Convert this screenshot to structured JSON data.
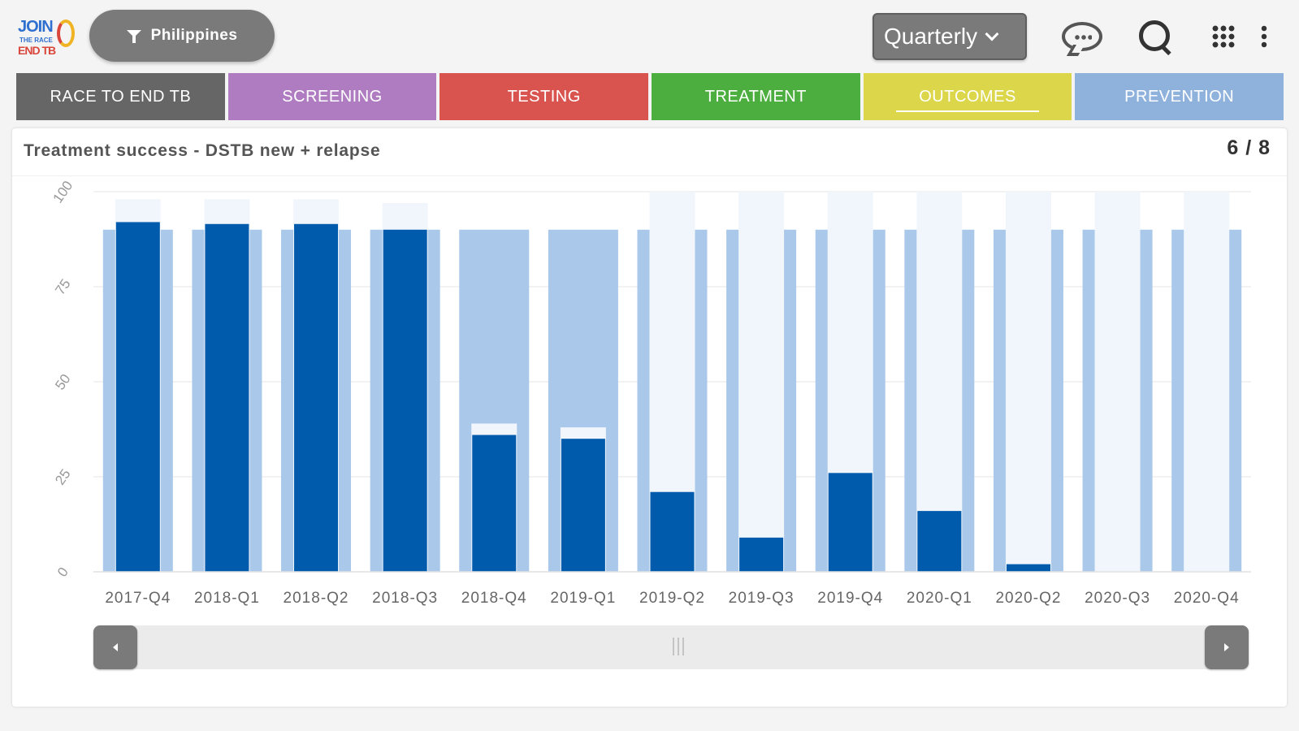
{
  "header": {
    "logo": {
      "line1": "JOIN",
      "line2": "THE RACE",
      "line3": "END TB"
    },
    "country_label": "Philippines",
    "period_value": "Quarterly"
  },
  "icons": {
    "filter": "filter-icon",
    "chat": "chat-icon",
    "search": "search-icon",
    "apps": "grid-icon",
    "more": "kebab-icon"
  },
  "tabs": [
    {
      "label": "RACE TO END TB",
      "color": "#666666"
    },
    {
      "label": "SCREENING",
      "color": "#b07cc1"
    },
    {
      "label": "TESTING",
      "color": "#d9534f"
    },
    {
      "label": "TREATMENT",
      "color": "#4cae3f"
    },
    {
      "label": "OUTCOMES",
      "color": "#dcd64b",
      "active": true
    },
    {
      "label": "PREVENTION",
      "color": "#8fb2dc"
    }
  ],
  "card": {
    "title": "Treatment success - DSTB new + relapse",
    "pager": "6 / 8"
  },
  "chart_data": {
    "type": "bar",
    "categories": [
      "2017-Q4",
      "2018-Q1",
      "2018-Q2",
      "2018-Q3",
      "2018-Q4",
      "2019-Q1",
      "2019-Q2",
      "2019-Q3",
      "2019-Q4",
      "2020-Q1",
      "2020-Q2",
      "2020-Q3",
      "2020-Q4"
    ],
    "series": [
      {
        "values": [
          90,
          90,
          90,
          90,
          90,
          90,
          90,
          90,
          90,
          90,
          90,
          90,
          90
        ],
        "color": "#a9c8ea"
      },
      {
        "values": [
          98,
          98,
          98,
          97,
          39,
          38,
          100,
          100,
          100,
          100,
          100,
          100,
          100
        ],
        "color": "#f1f6fc"
      },
      {
        "values": [
          92,
          91.5,
          91.5,
          90,
          36,
          35,
          21,
          9,
          26,
          16,
          2,
          0,
          0
        ],
        "color": "#005bac"
      }
    ],
    "y_ticks": [
      "0",
      "25",
      "50",
      "75",
      "100"
    ],
    "ylim": [
      0,
      100
    ],
    "grid": true
  }
}
